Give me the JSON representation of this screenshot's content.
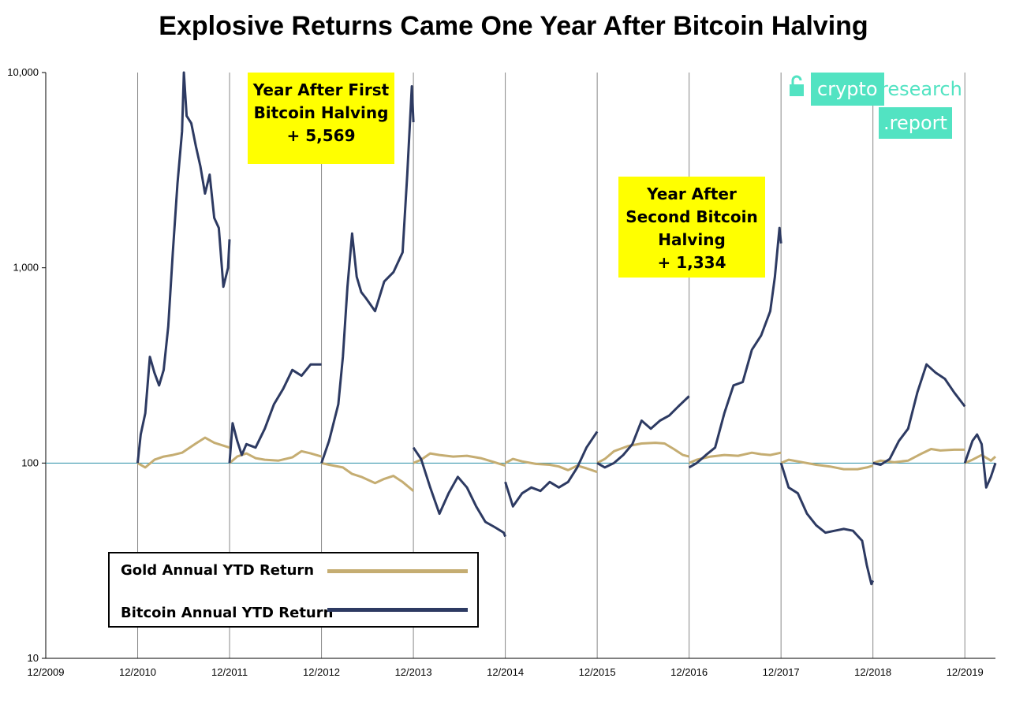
{
  "chart_data": {
    "type": "line",
    "title": "Explosive Returns Came One Year After Bitcoin Halving",
    "y_scale": "log",
    "ylim": [
      10,
      10000
    ],
    "y_ticks": [
      "10",
      "100",
      "1,000",
      "10,000"
    ],
    "x_ticks": [
      "12/2009",
      "12/2010",
      "12/2011",
      "12/2012",
      "12/2013",
      "12/2014",
      "12/2015",
      "12/2016",
      "12/2017",
      "12/2018",
      "12/2019"
    ],
    "xlim": [
      2009.917,
      2020.25
    ],
    "gridlines": "vertical",
    "reference_line_y": 100,
    "series": [
      {
        "name": "Gold Annual YTD Return",
        "color": "#c5ad72",
        "points": [
          [
            2010.917,
            100
          ],
          [
            2011.0,
            95
          ],
          [
            2011.1,
            104
          ],
          [
            2011.2,
            108
          ],
          [
            2011.3,
            110
          ],
          [
            2011.4,
            113
          ],
          [
            2011.55,
            126
          ],
          [
            2011.65,
            135
          ],
          [
            2011.75,
            127
          ],
          [
            2011.917,
            120
          ],
          [
            2011.917,
            100
          ],
          [
            2012.0,
            108
          ],
          [
            2012.1,
            112
          ],
          [
            2012.2,
            106
          ],
          [
            2012.3,
            104
          ],
          [
            2012.45,
            103
          ],
          [
            2012.6,
            107
          ],
          [
            2012.7,
            115
          ],
          [
            2012.8,
            112
          ],
          [
            2012.917,
            108
          ],
          [
            2012.917,
            100
          ],
          [
            2013.0,
            98
          ],
          [
            2013.15,
            95
          ],
          [
            2013.25,
            88
          ],
          [
            2013.35,
            85
          ],
          [
            2013.5,
            79
          ],
          [
            2013.6,
            83
          ],
          [
            2013.7,
            86
          ],
          [
            2013.8,
            80
          ],
          [
            2013.917,
            72
          ],
          [
            2013.917,
            100
          ],
          [
            2014.0,
            104
          ],
          [
            2014.1,
            112
          ],
          [
            2014.2,
            110
          ],
          [
            2014.35,
            108
          ],
          [
            2014.5,
            109
          ],
          [
            2014.65,
            106
          ],
          [
            2014.8,
            101
          ],
          [
            2014.917,
            97
          ],
          [
            2014.917,
            100
          ],
          [
            2015.0,
            105
          ],
          [
            2015.1,
            102
          ],
          [
            2015.25,
            99
          ],
          [
            2015.4,
            98
          ],
          [
            2015.5,
            96
          ],
          [
            2015.6,
            92
          ],
          [
            2015.7,
            97
          ],
          [
            2015.8,
            94
          ],
          [
            2015.917,
            90
          ],
          [
            2015.917,
            100
          ],
          [
            2016.0,
            105
          ],
          [
            2016.1,
            115
          ],
          [
            2016.25,
            122
          ],
          [
            2016.4,
            126
          ],
          [
            2016.55,
            127
          ],
          [
            2016.65,
            126
          ],
          [
            2016.75,
            118
          ],
          [
            2016.85,
            110
          ],
          [
            2016.917,
            108
          ],
          [
            2016.917,
            100
          ],
          [
            2017.0,
            104
          ],
          [
            2017.15,
            108
          ],
          [
            2017.3,
            110
          ],
          [
            2017.45,
            109
          ],
          [
            2017.6,
            113
          ],
          [
            2017.7,
            111
          ],
          [
            2017.8,
            110
          ],
          [
            2017.917,
            113
          ],
          [
            2017.917,
            100
          ],
          [
            2018.0,
            104
          ],
          [
            2018.15,
            101
          ],
          [
            2018.3,
            98
          ],
          [
            2018.45,
            96
          ],
          [
            2018.6,
            93
          ],
          [
            2018.75,
            93
          ],
          [
            2018.85,
            95
          ],
          [
            2018.917,
            97
          ],
          [
            2018.917,
            100
          ],
          [
            2019.0,
            103
          ],
          [
            2019.15,
            101
          ],
          [
            2019.3,
            103
          ],
          [
            2019.45,
            112
          ],
          [
            2019.55,
            118
          ],
          [
            2019.65,
            116
          ],
          [
            2019.8,
            117
          ],
          [
            2019.917,
            117
          ],
          [
            2019.917,
            100
          ],
          [
            2020.0,
            104
          ],
          [
            2020.1,
            110
          ],
          [
            2020.2,
            103
          ],
          [
            2020.25,
            108
          ]
        ]
      },
      {
        "name": "Bitcoin Annual YTD Return",
        "color": "#2d3a62",
        "points": [
          [
            2010.917,
            100
          ],
          [
            2010.95,
            140
          ],
          [
            2011.0,
            180
          ],
          [
            2011.05,
            350
          ],
          [
            2011.1,
            290
          ],
          [
            2011.15,
            250
          ],
          [
            2011.2,
            300
          ],
          [
            2011.25,
            500
          ],
          [
            2011.3,
            1200
          ],
          [
            2011.35,
            2700
          ],
          [
            2011.4,
            5000
          ],
          [
            2011.42,
            10000
          ],
          [
            2011.45,
            6000
          ],
          [
            2011.5,
            5500
          ],
          [
            2011.55,
            4200
          ],
          [
            2011.6,
            3300
          ],
          [
            2011.65,
            2400
          ],
          [
            2011.7,
            3000
          ],
          [
            2011.75,
            1800
          ],
          [
            2011.8,
            1600
          ],
          [
            2011.85,
            800
          ],
          [
            2011.9,
            1000
          ],
          [
            2011.917,
            1400
          ],
          [
            2011.917,
            100
          ],
          [
            2011.95,
            160
          ],
          [
            2012.0,
            130
          ],
          [
            2012.05,
            110
          ],
          [
            2012.1,
            125
          ],
          [
            2012.2,
            120
          ],
          [
            2012.3,
            150
          ],
          [
            2012.4,
            200
          ],
          [
            2012.5,
            240
          ],
          [
            2012.6,
            300
          ],
          [
            2012.7,
            280
          ],
          [
            2012.8,
            320
          ],
          [
            2012.917,
            320
          ],
          [
            2012.917,
            100
          ],
          [
            2013.0,
            130
          ],
          [
            2013.1,
            200
          ],
          [
            2013.15,
            350
          ],
          [
            2013.2,
            800
          ],
          [
            2013.25,
            1500
          ],
          [
            2013.3,
            900
          ],
          [
            2013.35,
            750
          ],
          [
            2013.4,
            700
          ],
          [
            2013.5,
            600
          ],
          [
            2013.6,
            850
          ],
          [
            2013.7,
            950
          ],
          [
            2013.8,
            1200
          ],
          [
            2013.85,
            3000
          ],
          [
            2013.9,
            8500
          ],
          [
            2013.917,
            5569
          ],
          [
            2013.917,
            120
          ],
          [
            2014.0,
            105
          ],
          [
            2014.1,
            75
          ],
          [
            2014.2,
            55
          ],
          [
            2014.3,
            70
          ],
          [
            2014.4,
            85
          ],
          [
            2014.5,
            75
          ],
          [
            2014.6,
            60
          ],
          [
            2014.7,
            50
          ],
          [
            2014.8,
            47
          ],
          [
            2014.9,
            44
          ],
          [
            2014.917,
            42
          ],
          [
            2014.917,
            80
          ],
          [
            2015.0,
            60
          ],
          [
            2015.1,
            70
          ],
          [
            2015.2,
            75
          ],
          [
            2015.3,
            72
          ],
          [
            2015.4,
            80
          ],
          [
            2015.5,
            75
          ],
          [
            2015.6,
            80
          ],
          [
            2015.7,
            95
          ],
          [
            2015.8,
            120
          ],
          [
            2015.917,
            145
          ],
          [
            2015.917,
            100
          ],
          [
            2016.0,
            95
          ],
          [
            2016.1,
            100
          ],
          [
            2016.2,
            110
          ],
          [
            2016.3,
            125
          ],
          [
            2016.4,
            165
          ],
          [
            2016.5,
            150
          ],
          [
            2016.6,
            165
          ],
          [
            2016.7,
            175
          ],
          [
            2016.8,
            195
          ],
          [
            2016.917,
            220
          ],
          [
            2016.917,
            95
          ],
          [
            2017.0,
            100
          ],
          [
            2017.1,
            110
          ],
          [
            2017.2,
            120
          ],
          [
            2017.3,
            180
          ],
          [
            2017.4,
            250
          ],
          [
            2017.5,
            260
          ],
          [
            2017.6,
            380
          ],
          [
            2017.7,
            450
          ],
          [
            2017.8,
            600
          ],
          [
            2017.85,
            900
          ],
          [
            2017.9,
            1600
          ],
          [
            2017.917,
            1334
          ],
          [
            2017.917,
            100
          ],
          [
            2018.0,
            75
          ],
          [
            2018.1,
            70
          ],
          [
            2018.2,
            55
          ],
          [
            2018.3,
            48
          ],
          [
            2018.4,
            44
          ],
          [
            2018.5,
            45
          ],
          [
            2018.6,
            46
          ],
          [
            2018.7,
            45
          ],
          [
            2018.8,
            40
          ],
          [
            2018.85,
            30
          ],
          [
            2018.9,
            24
          ],
          [
            2018.917,
            25
          ],
          [
            2018.917,
            100
          ],
          [
            2019.0,
            98
          ],
          [
            2019.1,
            105
          ],
          [
            2019.2,
            130
          ],
          [
            2019.3,
            150
          ],
          [
            2019.4,
            230
          ],
          [
            2019.5,
            320
          ],
          [
            2019.6,
            290
          ],
          [
            2019.7,
            270
          ],
          [
            2019.8,
            230
          ],
          [
            2019.917,
            195
          ],
          [
            2019.917,
            100
          ],
          [
            2020.0,
            130
          ],
          [
            2020.05,
            140
          ],
          [
            2020.1,
            125
          ],
          [
            2020.15,
            75
          ],
          [
            2020.2,
            85
          ],
          [
            2020.25,
            100
          ]
        ]
      }
    ],
    "annotations": [
      {
        "lines": [
          "Year After First",
          "Bitcoin Halving",
          "+ 5,569"
        ]
      },
      {
        "lines": [
          "Year After",
          "Second Bitcoin",
          "Halving",
          "+ 1,334"
        ]
      }
    ],
    "legend_position": "bottom-left"
  },
  "logo": {
    "word1": "crypto",
    "word2": "research",
    "word3": ".report"
  }
}
